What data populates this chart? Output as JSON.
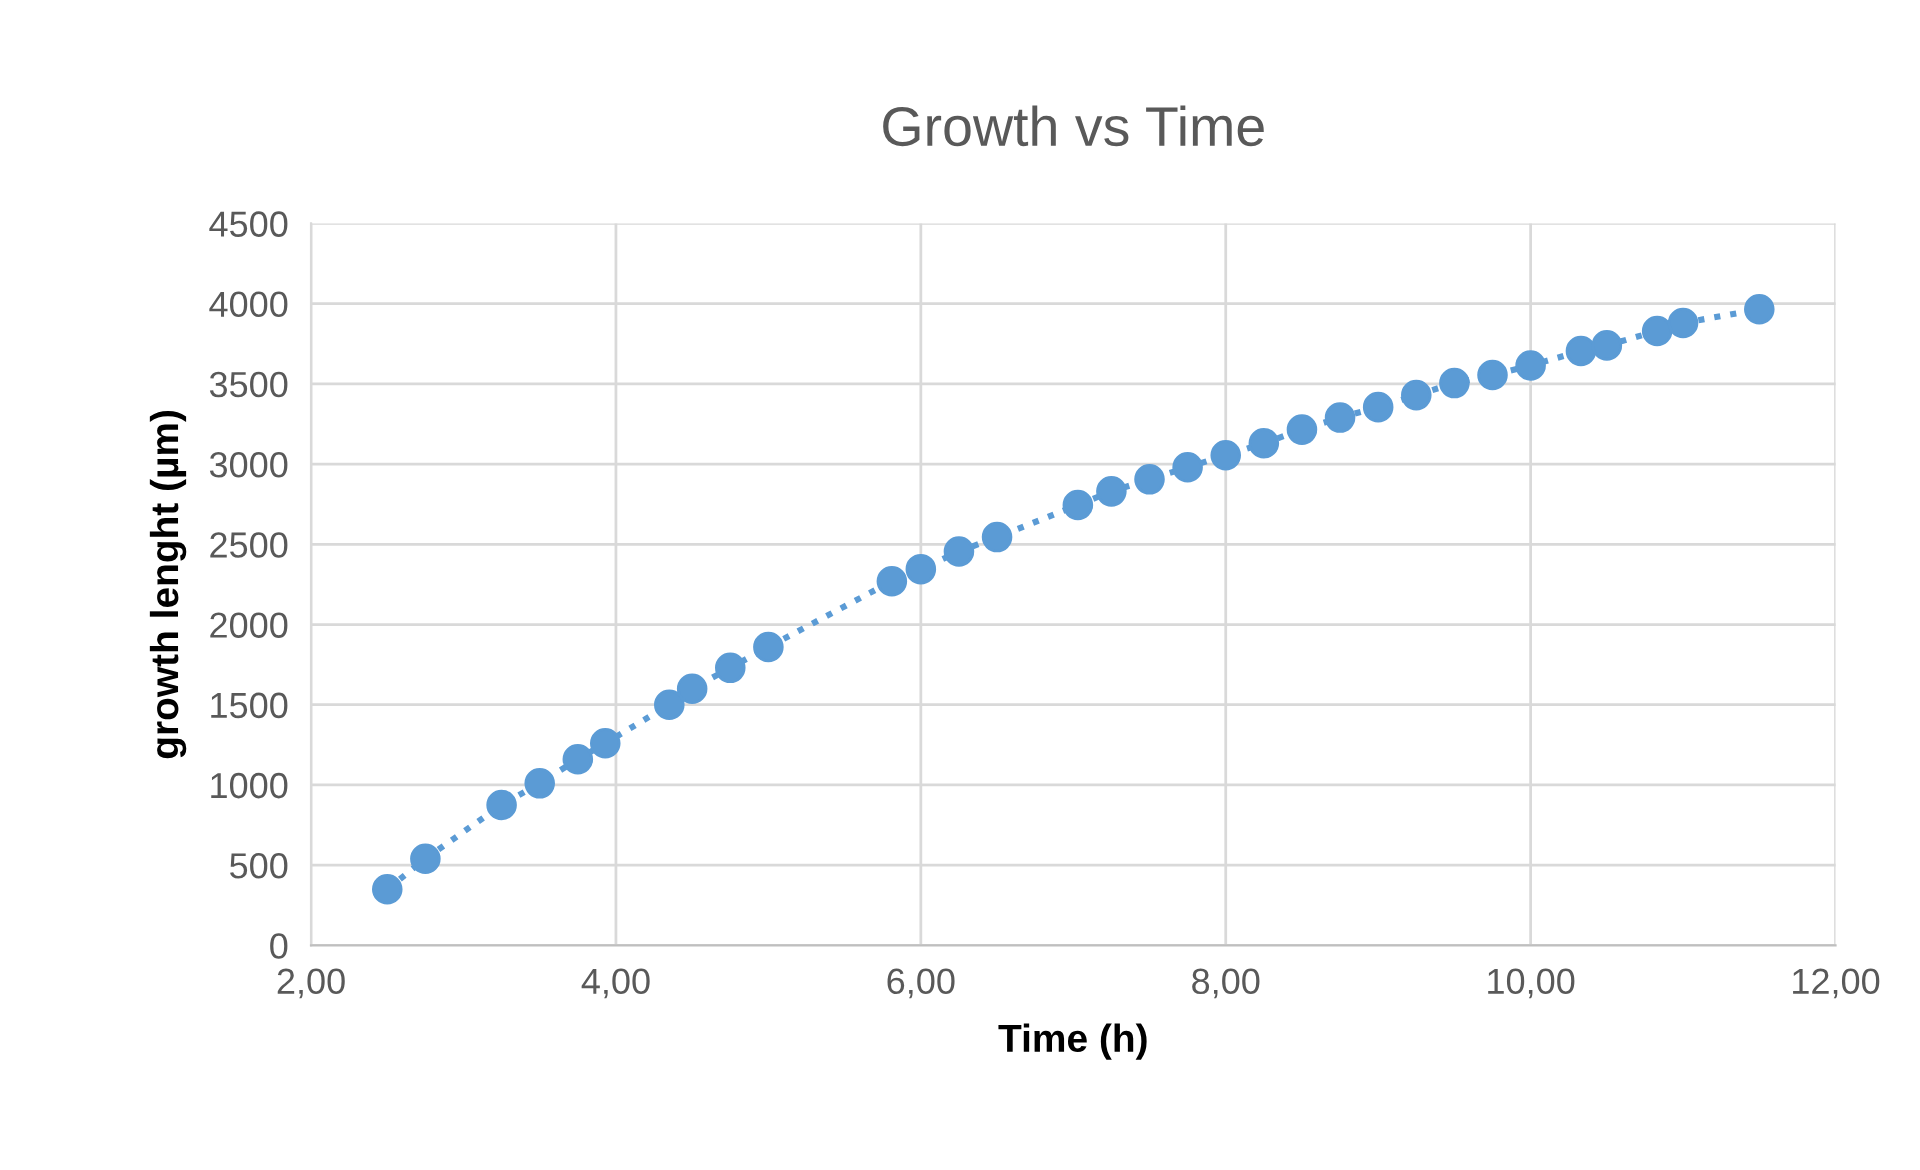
{
  "chart_data": {
    "type": "line",
    "title": "Growth vs Time",
    "xlabel": "Time (h)",
    "ylabel": "growth lenght (µm)",
    "x": [
      2.5,
      2.75,
      3.25,
      3.5,
      3.75,
      3.93,
      4.35,
      4.5,
      4.75,
      5.0,
      5.81,
      6.0,
      6.25,
      6.5,
      7.03,
      7.25,
      7.5,
      7.75,
      8.0,
      8.25,
      8.5,
      8.75,
      9.0,
      9.25,
      9.5,
      9.75,
      10.0,
      10.33,
      10.5,
      10.83,
      11.0,
      11.5
    ],
    "series": [
      {
        "color": "#5b9bd5",
        "values": [
          350,
          540,
          875,
          1010,
          1160,
          1260,
          1500,
          1600,
          1730,
          1860,
          2270,
          2345,
          2455,
          2545,
          2745,
          2830,
          2905,
          2980,
          3055,
          3130,
          3215,
          3290,
          3355,
          3430,
          3505,
          3555,
          3615,
          3705,
          3740,
          3830,
          3880,
          3965
        ]
      }
    ],
    "xlim": [
      2,
      12
    ],
    "ylim": [
      0,
      4500
    ],
    "xticks": [
      {
        "value": 2,
        "label": "2,00"
      },
      {
        "value": 4,
        "label": "4,00"
      },
      {
        "value": 6,
        "label": "6,00"
      },
      {
        "value": 8,
        "label": "8,00"
      },
      {
        "value": 10,
        "label": "10,00"
      },
      {
        "value": 12,
        "label": "12,00"
      }
    ],
    "yticks": [
      0,
      500,
      1000,
      1500,
      2000,
      2500,
      3000,
      3500,
      4000,
      4500
    ],
    "grid": true,
    "legend": false,
    "marker": "circle",
    "line_style": "dotted"
  }
}
